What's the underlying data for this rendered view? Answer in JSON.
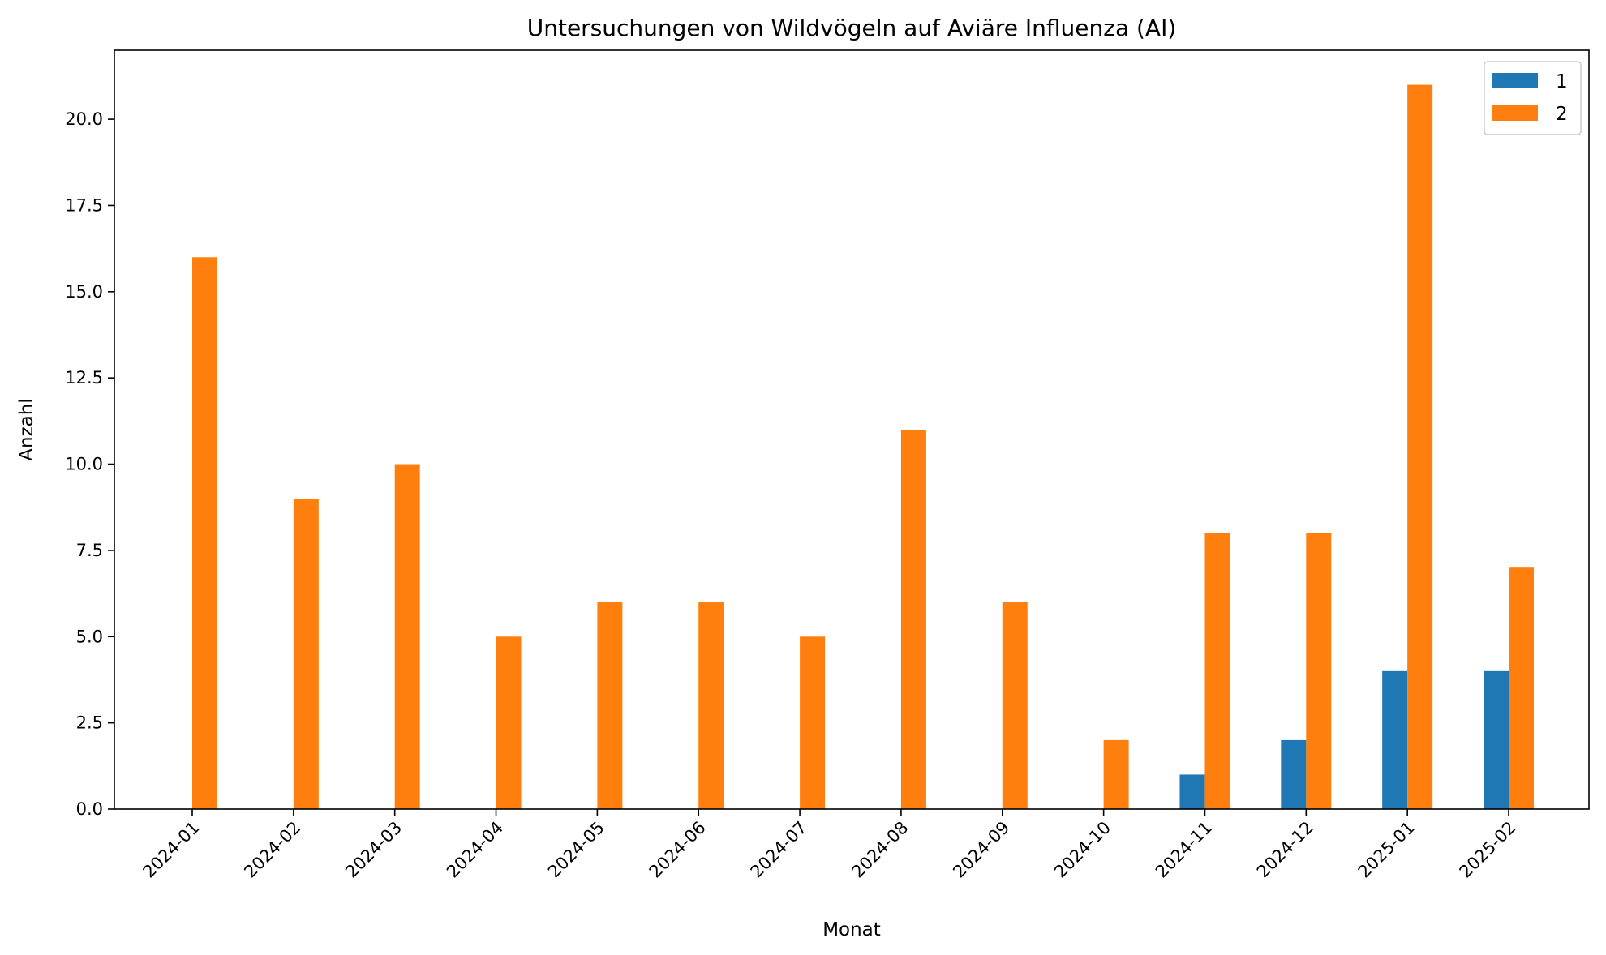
{
  "chart_data": {
    "type": "bar",
    "title": "Untersuchungen von Wildvögeln auf Aviäre Influenza (AI)",
    "xlabel": "Monat",
    "ylabel": "Anzahl",
    "categories": [
      "2024-01",
      "2024-02",
      "2024-03",
      "2024-04",
      "2024-05",
      "2024-06",
      "2024-07",
      "2024-08",
      "2024-09",
      "2024-10",
      "2024-11",
      "2024-12",
      "2025-01",
      "2025-02"
    ],
    "series": [
      {
        "name": "1",
        "color": "#1f77b4",
        "values": [
          0,
          0,
          0,
          0,
          0,
          0,
          0,
          0,
          0,
          0,
          1,
          2,
          4,
          4
        ]
      },
      {
        "name": "2",
        "color": "#ff7f0e",
        "values": [
          16,
          9,
          10,
          5,
          6,
          6,
          5,
          11,
          6,
          2,
          8,
          8,
          21,
          7
        ]
      }
    ],
    "ylim": [
      0,
      22
    ],
    "yticks": [
      "0.0",
      "2.5",
      "5.0",
      "7.5",
      "10.0",
      "12.5",
      "15.0",
      "17.5",
      "20.0"
    ],
    "grid": false,
    "legend_position": "top-right",
    "x_tick_rotation": "45°"
  }
}
